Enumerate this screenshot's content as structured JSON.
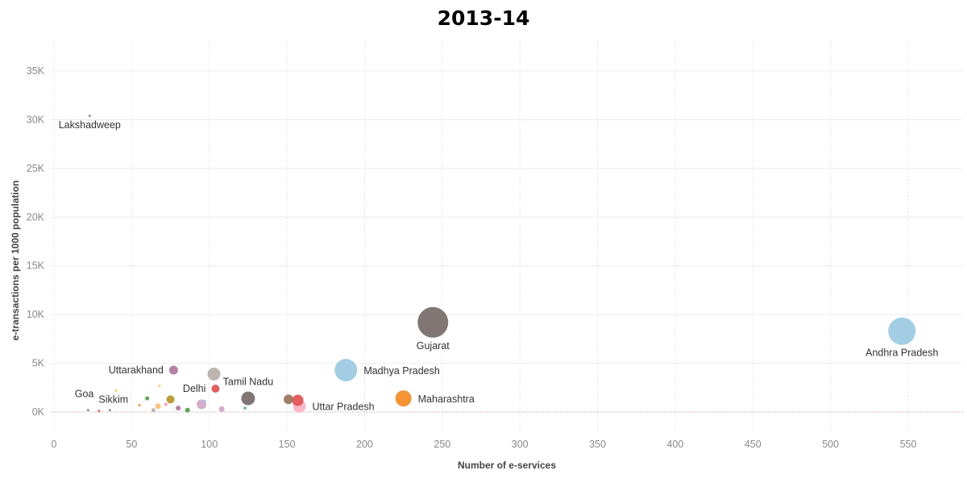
{
  "chart_data": {
    "type": "scatter",
    "title": "2013-14",
    "xlabel": "Number of e-services",
    "ylabel": "e-transactions per 1000 population",
    "xlim": [
      0,
      580
    ],
    "ylim": [
      -2000,
      37000
    ],
    "x_ticks": [
      {
        "value": 0,
        "label": "0"
      },
      {
        "value": 50,
        "label": "50"
      },
      {
        "value": 100,
        "label": "100"
      },
      {
        "value": 150,
        "label": "150"
      },
      {
        "value": 200,
        "label": "200"
      },
      {
        "value": 250,
        "label": "250"
      },
      {
        "value": 300,
        "label": "300"
      },
      {
        "value": 350,
        "label": "350"
      },
      {
        "value": 400,
        "label": "400"
      },
      {
        "value": 450,
        "label": "450"
      },
      {
        "value": 500,
        "label": "500"
      },
      {
        "value": 550,
        "label": "550"
      }
    ],
    "y_ticks": [
      {
        "value": 0,
        "label": "0K"
      },
      {
        "value": 5000,
        "label": "5K"
      },
      {
        "value": 10000,
        "label": "10K"
      },
      {
        "value": 15000,
        "label": "15K"
      },
      {
        "value": 20000,
        "label": "20K"
      },
      {
        "value": 25000,
        "label": "25K"
      },
      {
        "value": 30000,
        "label": "30K"
      },
      {
        "value": 35000,
        "label": "35K"
      }
    ],
    "grid": true,
    "points": [
      {
        "name": "Lakshadweep",
        "x": 23,
        "y": 30400,
        "size": 1.5,
        "color": "#8a8a8a",
        "label": "Lakshadweep",
        "label_pos": "below"
      },
      {
        "name": "Andhra Pradesh",
        "x": 546,
        "y": 8300,
        "size": 17,
        "color": "#9ecae1",
        "label": "Andhra Pradesh",
        "label_pos": "below"
      },
      {
        "name": "Gujarat",
        "x": 244,
        "y": 9200,
        "size": 19,
        "color": "#79706e",
        "label": "Gujarat",
        "label_pos": "below"
      },
      {
        "name": "Madhya Pradesh",
        "x": 188,
        "y": 4300,
        "size": 14,
        "color": "#9ecae1",
        "label": "Madhya Pradesh",
        "label_pos": "right"
      },
      {
        "name": "Maharashtra",
        "x": 225,
        "y": 1400,
        "size": 10,
        "color": "#f28e2b",
        "label": "Maharashtra",
        "label_pos": "right"
      },
      {
        "name": "Uttar Pradesh",
        "x": 158,
        "y": 600,
        "size": 8,
        "color": "#fbb4c4",
        "label": "Uttar Pradesh",
        "label_pos": "right"
      },
      {
        "name": "Tamil Nadu",
        "x": 125,
        "y": 1400,
        "size": 8.5,
        "color": "#79706e",
        "label": "Tamil Nadu",
        "label_pos": "above"
      },
      {
        "name": "Delhi",
        "x": 104,
        "y": 2400,
        "size": 5,
        "color": "#e15759",
        "label": "Delhi",
        "label_pos": "left"
      },
      {
        "name": "Uttarakhand",
        "x": 77,
        "y": 4300,
        "size": 5.5,
        "color": "#b07aa1",
        "label": "Uttarakhand",
        "label_pos": "left"
      },
      {
        "name": "Goa",
        "x": 22,
        "y": 200,
        "size": 1.5,
        "color": "#8a8a8a",
        "label": "Goa",
        "label_pos": "above-left"
      },
      {
        "name": "Sikkim",
        "x": 36,
        "y": 200,
        "size": 1.5,
        "color": "#8a8a8a",
        "label": "Sikkim",
        "label_pos": "above-right"
      },
      {
        "name": "",
        "x": 103,
        "y": 3900,
        "size": 8,
        "color": "#bab0ac",
        "label": ""
      },
      {
        "name": "",
        "x": 157,
        "y": 1200,
        "size": 7,
        "color": "#e15759",
        "label": ""
      },
      {
        "name": "",
        "x": 151,
        "y": 1300,
        "size": 6,
        "color": "#9c755f",
        "label": ""
      },
      {
        "name": "",
        "x": 95,
        "y": 800,
        "size": 6,
        "color": "#d4a6c8",
        "label": ""
      },
      {
        "name": "",
        "x": 75,
        "y": 1300,
        "size": 5,
        "color": "#b6992d",
        "label": ""
      },
      {
        "name": "",
        "x": 60,
        "y": 1400,
        "size": 2.5,
        "color": "#59a14f",
        "label": ""
      },
      {
        "name": "",
        "x": 67,
        "y": 600,
        "size": 3.5,
        "color": "#ffbe7d",
        "label": ""
      },
      {
        "name": "",
        "x": 80,
        "y": 400,
        "size": 3,
        "color": "#b07aa1",
        "label": ""
      },
      {
        "name": "",
        "x": 86,
        "y": 200,
        "size": 3,
        "color": "#59a14f",
        "label": ""
      },
      {
        "name": "",
        "x": 108,
        "y": 300,
        "size": 3.5,
        "color": "#d4a6c8",
        "label": ""
      },
      {
        "name": "",
        "x": 64,
        "y": 200,
        "size": 2.5,
        "color": "#bab0ac",
        "label": ""
      },
      {
        "name": "",
        "x": 123,
        "y": 400,
        "size": 2,
        "color": "#76b7b2",
        "label": ""
      },
      {
        "name": "",
        "x": 68,
        "y": 2700,
        "size": 1.5,
        "color": "#f1ce63",
        "label": ""
      },
      {
        "name": "",
        "x": 40,
        "y": 2200,
        "size": 1.5,
        "color": "#f1ce63",
        "label": ""
      },
      {
        "name": "",
        "x": 55,
        "y": 700,
        "size": 1.5,
        "color": "#f28e2b",
        "label": ""
      },
      {
        "name": "",
        "x": 29,
        "y": 100,
        "size": 1.5,
        "color": "#e15759",
        "label": ""
      },
      {
        "name": "",
        "x": 97,
        "y": 1100,
        "size": 2,
        "color": "#9ecae1",
        "label": ""
      },
      {
        "name": "",
        "x": 72,
        "y": 800,
        "size": 2,
        "color": "#ff9da7",
        "label": ""
      }
    ]
  }
}
